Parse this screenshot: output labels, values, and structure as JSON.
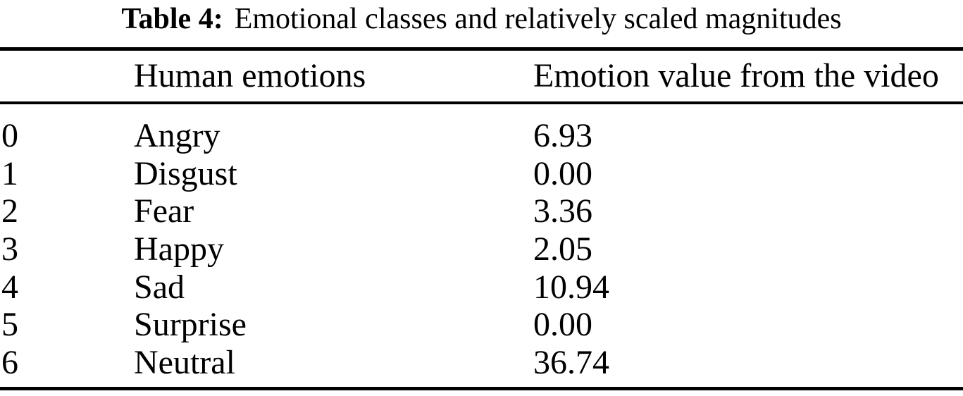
{
  "page": {
    "background_color": "#ffffff",
    "text_color": "#000000"
  },
  "table": {
    "caption": {
      "label": "Table 4:",
      "text": "Emotional classes and relatively scaled magnitudes"
    },
    "columns": {
      "index": "",
      "emotion": "Human emotions",
      "value": "Emotion value from the video"
    },
    "rows": [
      {
        "index": "0",
        "emotion": "Angry",
        "value": "6.93"
      },
      {
        "index": "1",
        "emotion": "Disgust",
        "value": "0.00"
      },
      {
        "index": "2",
        "emotion": "Fear",
        "value": "3.36"
      },
      {
        "index": "3",
        "emotion": "Happy",
        "value": "2.05"
      },
      {
        "index": "4",
        "emotion": "Sad",
        "value": "10.94"
      },
      {
        "index": "5",
        "emotion": "Surprise",
        "value": "0.00"
      },
      {
        "index": "6",
        "emotion": "Neutral",
        "value": "36.74"
      }
    ]
  }
}
